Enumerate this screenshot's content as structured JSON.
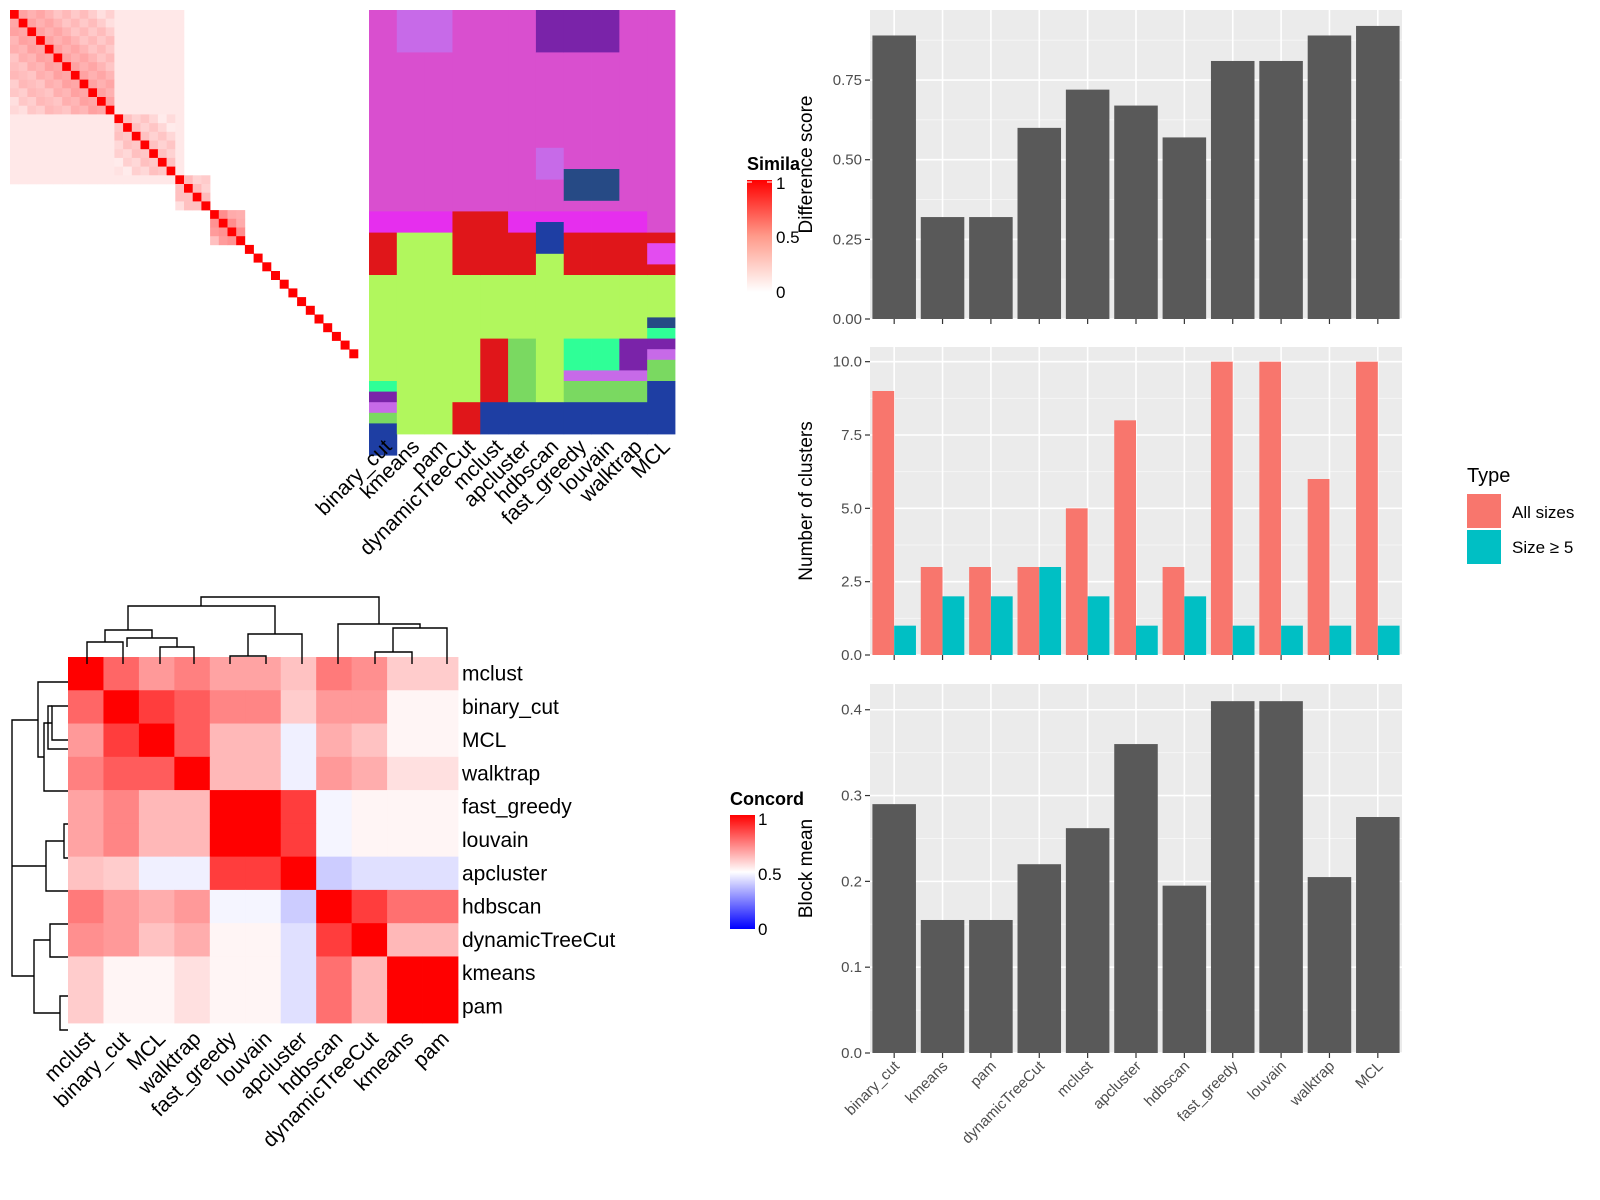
{
  "methods": [
    "binary_cut",
    "kmeans",
    "pam",
    "dynamicTreeCut",
    "mclust",
    "apcluster",
    "hdbscan",
    "fast_greedy",
    "louvain",
    "walktrap",
    "MCL"
  ],
  "similarity_legend": {
    "title": "Simila",
    "ticks": [
      "1",
      "0.5",
      "0"
    ]
  },
  "concordance_legend": {
    "title": "Concord",
    "ticks": [
      "1",
      "0.5",
      "0"
    ]
  },
  "concordance_order": [
    "mclust",
    "binary_cut",
    "MCL",
    "walktrap",
    "fast_greedy",
    "louvain",
    "apcluster",
    "hdbscan",
    "dynamicTreeCut",
    "kmeans",
    "pam"
  ],
  "chart_data": [
    {
      "type": "heatmap",
      "name": "term-similarity",
      "size": 40,
      "blocks": [
        {
          "start": 0,
          "end": 12,
          "value": 0.2
        },
        {
          "start": 12,
          "end": 19,
          "value": 0.12
        },
        {
          "start": 19,
          "end": 23,
          "value": 0.15
        },
        {
          "start": 23,
          "end": 27,
          "value": 0.3
        }
      ],
      "diag_value": 1.0,
      "colors": {
        "high": "#ff0000",
        "mid": "#ff8a7a",
        "low": "#ffffff"
      }
    },
    {
      "type": "heatmap",
      "name": "cluster-assignments",
      "columns": [
        "binary_cut",
        "kmeans",
        "pam",
        "dynamicTreeCut",
        "mclust",
        "apcluster",
        "hdbscan",
        "fast_greedy",
        "louvain",
        "walktrap",
        "MCL"
      ],
      "rows": 40,
      "palette": {
        "a": "#d94fcf",
        "b": "#7a23a9",
        "c": "#e62eee",
        "d": "#e0161a",
        "e": "#b1f75d",
        "f": "#1e3ea3",
        "g": "#c76ae8",
        "h": "#2fff97",
        "i": "#7ad961",
        "j": "#264a85",
        "k": "#e34cf0"
      },
      "column_runs": [
        [
          [
            "a",
            19
          ],
          [
            "c",
            2
          ],
          [
            "d",
            4
          ],
          [
            "e",
            10
          ],
          [
            "h",
            1
          ],
          [
            "b",
            1
          ],
          [
            "g",
            1
          ],
          [
            "i",
            1
          ],
          [
            "f",
            3
          ]
        ],
        [
          [
            "g",
            4
          ],
          [
            "a",
            15
          ],
          [
            "c",
            2
          ],
          [
            "e",
            19
          ]
        ],
        [
          [
            "g",
            4
          ],
          [
            "a",
            15
          ],
          [
            "c",
            2
          ],
          [
            "e",
            19
          ]
        ],
        [
          [
            "a",
            19
          ],
          [
            "d",
            6
          ],
          [
            "e",
            12
          ],
          [
            "d",
            3
          ]
        ],
        [
          [
            "a",
            19
          ],
          [
            "d",
            6
          ],
          [
            "e",
            6
          ],
          [
            "d",
            6
          ],
          [
            "f",
            3
          ]
        ],
        [
          [
            "a",
            19
          ],
          [
            "c",
            2
          ],
          [
            "d",
            4
          ],
          [
            "e",
            6
          ],
          [
            "i",
            6
          ],
          [
            "f",
            3
          ]
        ],
        [
          [
            "b",
            4
          ],
          [
            "a",
            9
          ],
          [
            "g",
            3
          ],
          [
            "a",
            3
          ],
          [
            "c",
            1
          ],
          [
            "f",
            3
          ],
          [
            "e",
            14
          ],
          [
            "f",
            3
          ]
        ],
        [
          [
            "b",
            4
          ],
          [
            "a",
            11
          ],
          [
            "j",
            3
          ],
          [
            "a",
            1
          ],
          [
            "c",
            2
          ],
          [
            "d",
            4
          ],
          [
            "e",
            6
          ],
          [
            "h",
            3
          ],
          [
            "g",
            1
          ],
          [
            "i",
            2
          ],
          [
            "f",
            3
          ]
        ],
        [
          [
            "b",
            4
          ],
          [
            "a",
            11
          ],
          [
            "j",
            3
          ],
          [
            "a",
            1
          ],
          [
            "c",
            2
          ],
          [
            "d",
            4
          ],
          [
            "e",
            6
          ],
          [
            "h",
            3
          ],
          [
            "g",
            1
          ],
          [
            "i",
            2
          ],
          [
            "f",
            3
          ]
        ],
        [
          [
            "a",
            19
          ],
          [
            "c",
            2
          ],
          [
            "d",
            4
          ],
          [
            "e",
            6
          ],
          [
            "b",
            3
          ],
          [
            "g",
            1
          ],
          [
            "i",
            2
          ],
          [
            "f",
            3
          ]
        ],
        [
          [
            "a",
            21
          ],
          [
            "d",
            1
          ],
          [
            "k",
            2
          ],
          [
            "d",
            1
          ],
          [
            "e",
            4
          ],
          [
            "j",
            1
          ],
          [
            "h",
            1
          ],
          [
            "b",
            1
          ],
          [
            "g",
            1
          ],
          [
            "i",
            2
          ],
          [
            "f",
            5
          ]
        ]
      ]
    },
    {
      "type": "bar",
      "name": "difference-score",
      "categories": [
        "binary_cut",
        "kmeans",
        "pam",
        "dynamicTreeCut",
        "mclust",
        "apcluster",
        "hdbscan",
        "fast_greedy",
        "louvain",
        "walktrap",
        "MCL"
      ],
      "values": [
        0.89,
        0.32,
        0.32,
        0.6,
        0.72,
        0.67,
        0.57,
        0.81,
        0.81,
        0.89,
        0.92
      ],
      "ylabel": "Difference score",
      "ylim": [
        0,
        0.97
      ],
      "yticks": [
        0,
        0.25,
        0.5,
        0.75
      ],
      "yticklabels": [
        "0.00",
        "0.25",
        "0.50",
        "0.75"
      ],
      "grid": true,
      "color": "#595959"
    },
    {
      "type": "bar",
      "name": "number-of-clusters",
      "categories": [
        "binary_cut",
        "kmeans",
        "pam",
        "dynamicTreeCut",
        "mclust",
        "apcluster",
        "hdbscan",
        "fast_greedy",
        "louvain",
        "walktrap",
        "MCL"
      ],
      "series": [
        {
          "name": "All sizes",
          "color": "#f8766d",
          "values": [
            9,
            3,
            3,
            3,
            5,
            8,
            3,
            10,
            10,
            6,
            10
          ]
        },
        {
          "name": "Size ≥ 5",
          "color": "#00bfc4",
          "values": [
            1,
            2,
            2,
            3,
            2,
            1,
            2,
            1,
            1,
            1,
            1
          ]
        }
      ],
      "ylabel": "Number of clusters",
      "ylim": [
        0,
        10.5
      ],
      "yticks": [
        0,
        2.5,
        5,
        7.5,
        10
      ],
      "yticklabels": [
        "0.0",
        "2.5",
        "5.0",
        "7.5",
        "10.0"
      ],
      "legend": {
        "title": "Type",
        "position": "right"
      },
      "grid": true
    },
    {
      "type": "bar",
      "name": "block-mean",
      "categories": [
        "binary_cut",
        "kmeans",
        "pam",
        "dynamicTreeCut",
        "mclust",
        "apcluster",
        "hdbscan",
        "fast_greedy",
        "louvain",
        "walktrap",
        "MCL"
      ],
      "values": [
        0.29,
        0.155,
        0.155,
        0.22,
        0.262,
        0.36,
        0.195,
        0.41,
        0.41,
        0.205,
        0.275
      ],
      "ylabel": "Block mean",
      "ylim": [
        0,
        0.43
      ],
      "yticks": [
        0,
        0.1,
        0.2,
        0.3,
        0.4
      ],
      "yticklabels": [
        "0.0",
        "0.1",
        "0.2",
        "0.3",
        "0.4"
      ],
      "grid": true,
      "color": "#595959"
    },
    {
      "type": "heatmap",
      "name": "concordance",
      "rows": [
        "mclust",
        "binary_cut",
        "MCL",
        "walktrap",
        "fast_greedy",
        "louvain",
        "apcluster",
        "hdbscan",
        "dynamicTreeCut",
        "kmeans",
        "pam"
      ],
      "columns": [
        "mclust",
        "binary_cut",
        "MCL",
        "walktrap",
        "fast_greedy",
        "louvain",
        "apcluster",
        "hdbscan",
        "dynamicTreeCut",
        "kmeans",
        "pam"
      ],
      "values": [
        [
          1.0,
          0.8,
          0.7,
          0.75,
          0.68,
          0.68,
          0.62,
          0.76,
          0.72,
          0.6,
          0.6
        ],
        [
          0.8,
          1.0,
          0.88,
          0.82,
          0.74,
          0.74,
          0.6,
          0.7,
          0.7,
          0.52,
          0.52
        ],
        [
          0.7,
          0.88,
          1.0,
          0.82,
          0.64,
          0.64,
          0.47,
          0.66,
          0.62,
          0.52,
          0.52
        ],
        [
          0.75,
          0.82,
          0.82,
          1.0,
          0.64,
          0.64,
          0.47,
          0.7,
          0.66,
          0.56,
          0.56
        ],
        [
          0.68,
          0.74,
          0.64,
          0.64,
          1.0,
          1.0,
          0.88,
          0.48,
          0.52,
          0.52,
          0.52
        ],
        [
          0.68,
          0.74,
          0.64,
          0.64,
          1.0,
          1.0,
          0.88,
          0.48,
          0.52,
          0.52,
          0.52
        ],
        [
          0.62,
          0.6,
          0.47,
          0.47,
          0.88,
          0.88,
          1.0,
          0.4,
          0.44,
          0.44,
          0.44
        ],
        [
          0.76,
          0.7,
          0.66,
          0.7,
          0.48,
          0.48,
          0.4,
          1.0,
          0.88,
          0.78,
          0.78
        ],
        [
          0.72,
          0.7,
          0.62,
          0.66,
          0.52,
          0.52,
          0.44,
          0.88,
          1.0,
          0.64,
          0.64
        ],
        [
          0.6,
          0.52,
          0.52,
          0.56,
          0.52,
          0.52,
          0.44,
          0.78,
          0.64,
          1.0,
          1.0
        ],
        [
          0.6,
          0.52,
          0.52,
          0.56,
          0.52,
          0.52,
          0.44,
          0.78,
          0.64,
          1.0,
          1.0
        ]
      ],
      "colors": {
        "high": "#ff0000",
        "mid": "#ffffff",
        "low": "#0000ff"
      }
    }
  ]
}
